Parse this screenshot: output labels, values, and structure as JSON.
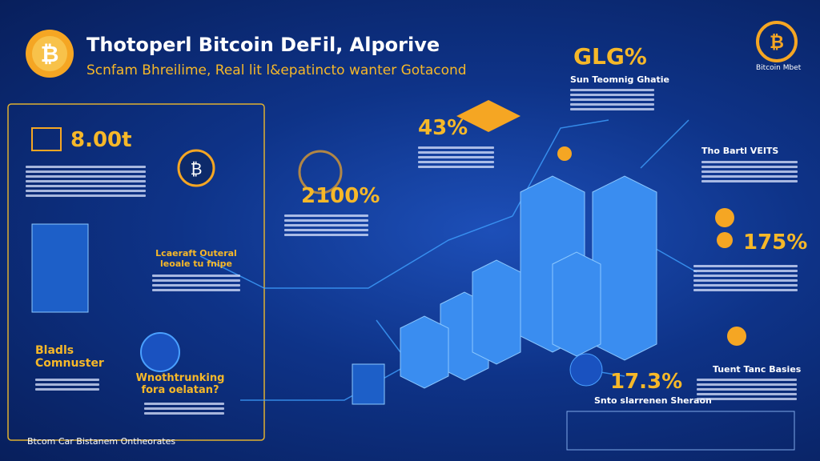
{
  "header": {
    "title": "Thotoperl Bitcoin DeFil, Alporive",
    "subtitle": "Scnfam Bhreilime, Real lit l&epatincto wanter Gotacond",
    "logo_caption": "Bitcoin Mbet"
  },
  "callouts": [
    {
      "value": "8.00t"
    },
    {
      "value": "2100%",
      "heading": "Lcaeraft Outeral leoale tu fnipe"
    },
    {
      "value": "43%"
    },
    {
      "value": "GLG%",
      "heading": "Sun Teomnig Ghatie"
    },
    {
      "value": "175%",
      "heading": "Tho Bartl VEITS"
    },
    {
      "value": "17.3%",
      "heading": "Snto slarrenen Sheraon"
    }
  ],
  "sections": [
    {
      "heading": "Bladls Comnuster"
    },
    {
      "heading": "Wnothtrunking fora oelatan?"
    },
    {
      "heading": "Tuent Tanc Basies"
    }
  ],
  "footer": {
    "text": "Btcom Car Bistanem Ontheorates"
  }
}
